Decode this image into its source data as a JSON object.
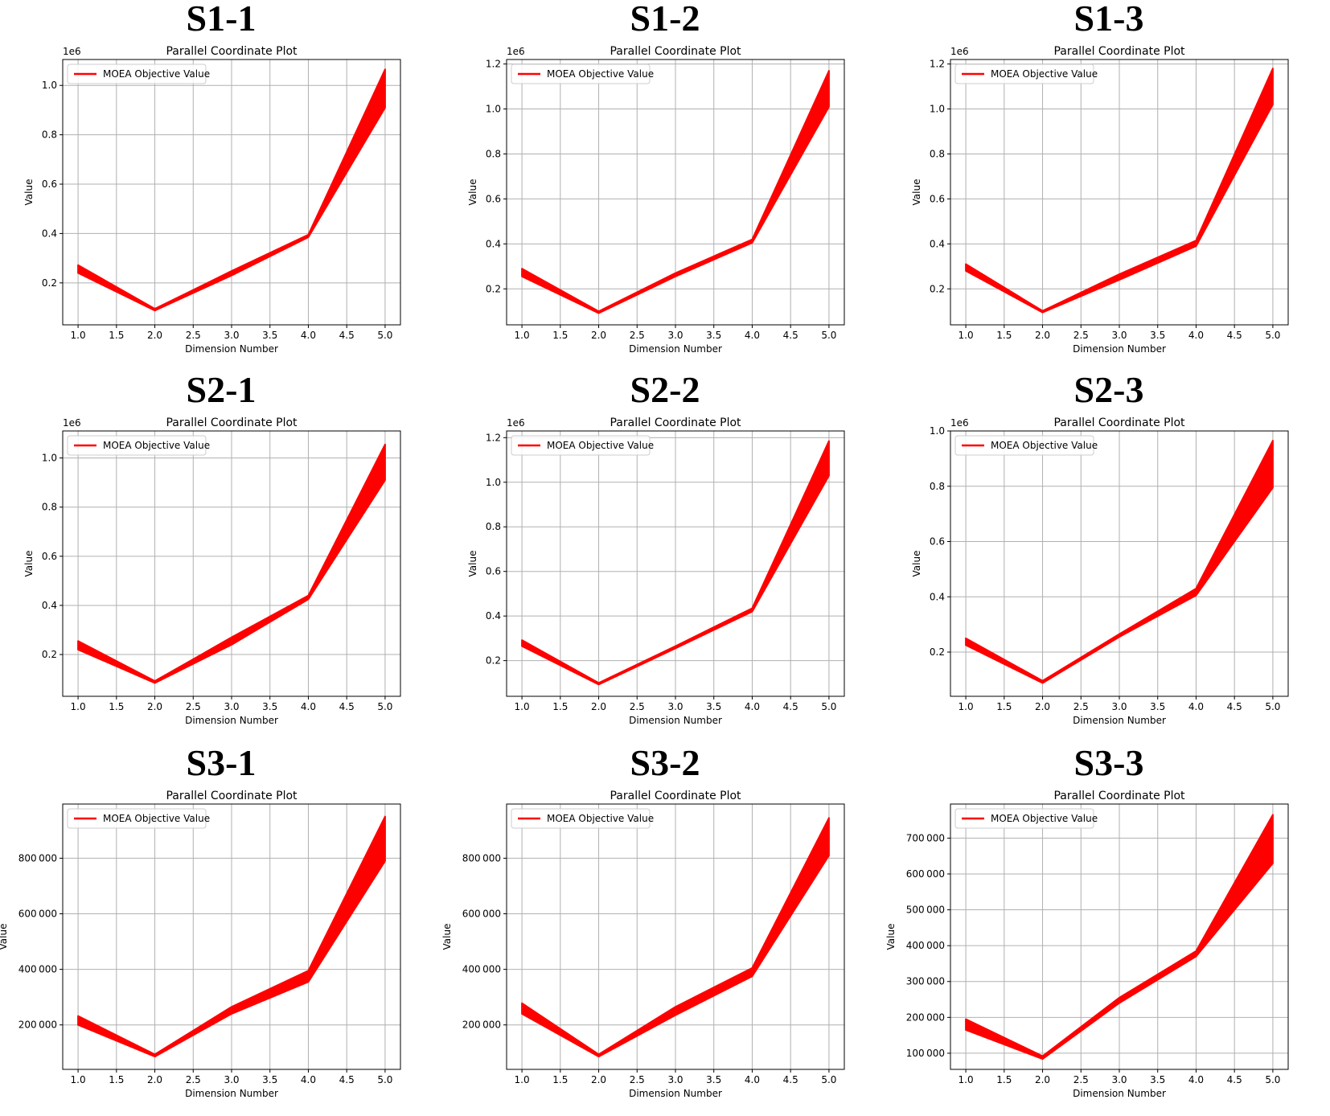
{
  "chart_data": [
    {
      "id": "S1-1",
      "panel_label": "S1-1",
      "type": "area",
      "title": "Parallel Coordinate Plot",
      "xlabel": "Dimension Number",
      "ylabel": "Value",
      "y_offset_text": "1e6",
      "y_format": "sci",
      "legend": "MOEA Objective Value",
      "legend_placement": "upper-left",
      "grid": true,
      "x": [
        1,
        2,
        3,
        4,
        5
      ],
      "lower": [
        240000,
        88000,
        230000,
        385000,
        910000
      ],
      "upper": [
        272000,
        95000,
        248000,
        395000,
        1065000
      ],
      "xlim": [
        0.8,
        5.2
      ],
      "ylim": [
        30000,
        1105000
      ],
      "xticks": [
        1.0,
        1.5,
        2.0,
        2.5,
        3.0,
        3.5,
        4.0,
        4.5,
        5.0
      ],
      "yticks": [
        200000,
        400000,
        600000,
        800000,
        1000000
      ]
    },
    {
      "id": "S1-2",
      "panel_label": "S1-2",
      "type": "area",
      "title": "Parallel Coordinate Plot",
      "xlabel": "Dimension Number",
      "ylabel": "Value",
      "y_offset_text": "1e6",
      "y_format": "sci",
      "legend": "MOEA Objective Value",
      "legend_placement": "upper-left",
      "grid": true,
      "x": [
        1,
        2,
        3,
        4,
        5
      ],
      "lower": [
        255000,
        92000,
        255000,
        405000,
        1010000
      ],
      "upper": [
        290000,
        100000,
        270000,
        420000,
        1170000
      ],
      "xlim": [
        0.8,
        5.2
      ],
      "ylim": [
        40000,
        1220000
      ],
      "xticks": [
        1.0,
        1.5,
        2.0,
        2.5,
        3.0,
        3.5,
        4.0,
        4.5,
        5.0
      ],
      "yticks": [
        200000,
        400000,
        600000,
        800000,
        1000000,
        1200000
      ]
    },
    {
      "id": "S1-3",
      "panel_label": "S1-3",
      "type": "area",
      "title": "Parallel Coordinate Plot",
      "xlabel": "Dimension Number",
      "ylabel": "Value",
      "y_offset_text": "1e6",
      "y_format": "sci",
      "legend": "MOEA Objective Value",
      "legend_placement": "upper-left",
      "grid": true,
      "x": [
        1,
        2,
        3,
        4,
        5
      ],
      "lower": [
        280000,
        95000,
        240000,
        390000,
        1020000
      ],
      "upper": [
        310000,
        102000,
        265000,
        415000,
        1180000
      ],
      "xlim": [
        0.8,
        5.2
      ],
      "ylim": [
        40000,
        1220000
      ],
      "xticks": [
        1.0,
        1.5,
        2.0,
        2.5,
        3.0,
        3.5,
        4.0,
        4.5,
        5.0
      ],
      "yticks": [
        200000,
        400000,
        600000,
        800000,
        1000000,
        1200000
      ]
    },
    {
      "id": "S2-1",
      "panel_label": "S2-1",
      "type": "area",
      "title": "Parallel Coordinate Plot",
      "xlabel": "Dimension Number",
      "ylabel": "Value",
      "y_offset_text": "1e6",
      "y_format": "sci",
      "legend": "MOEA Objective Value",
      "legend_placement": "upper-left",
      "grid": true,
      "x": [
        1,
        2,
        3,
        4,
        5
      ],
      "lower": [
        220000,
        84000,
        240000,
        425000,
        910000
      ],
      "upper": [
        255000,
        92000,
        270000,
        440000,
        1055000
      ],
      "xlim": [
        0.8,
        5.2
      ],
      "ylim": [
        30000,
        1110000
      ],
      "xticks": [
        1.0,
        1.5,
        2.0,
        2.5,
        3.0,
        3.5,
        4.0,
        4.5,
        5.0
      ],
      "yticks": [
        200000,
        400000,
        600000,
        800000,
        1000000
      ]
    },
    {
      "id": "S2-2",
      "panel_label": "S2-2",
      "type": "area",
      "title": "Parallel Coordinate Plot",
      "xlabel": "Dimension Number",
      "ylabel": "Value",
      "y_offset_text": "1e6",
      "y_format": "sci",
      "legend": "MOEA Objective Value",
      "legend_placement": "upper-left",
      "grid": true,
      "x": [
        1,
        2,
        3,
        4,
        5
      ],
      "lower": [
        265000,
        93000,
        255000,
        420000,
        1030000
      ],
      "upper": [
        292000,
        100000,
        265000,
        435000,
        1185000
      ],
      "xlim": [
        0.8,
        5.2
      ],
      "ylim": [
        40000,
        1230000
      ],
      "xticks": [
        1.0,
        1.5,
        2.0,
        2.5,
        3.0,
        3.5,
        4.0,
        4.5,
        5.0
      ],
      "yticks": [
        200000,
        400000,
        600000,
        800000,
        1000000,
        1200000
      ]
    },
    {
      "id": "S2-3",
      "panel_label": "S2-3",
      "type": "area",
      "title": "Parallel Coordinate Plot",
      "xlabel": "Dimension Number",
      "ylabel": "Value",
      "y_offset_text": "1e6",
      "y_format": "sci",
      "legend": "MOEA Objective Value",
      "legend_placement": "upper-left",
      "grid": true,
      "x": [
        1,
        2,
        3,
        4,
        5
      ],
      "lower": [
        225000,
        88000,
        255000,
        405000,
        795000
      ],
      "upper": [
        250000,
        96000,
        265000,
        430000,
        965000
      ],
      "xlim": [
        0.8,
        5.2
      ],
      "ylim": [
        40000,
        1000000
      ],
      "xticks": [
        1.0,
        1.5,
        2.0,
        2.5,
        3.0,
        3.5,
        4.0,
        4.5,
        5.0
      ],
      "yticks": [
        200000,
        400000,
        600000,
        800000,
        1000000
      ]
    },
    {
      "id": "S3-1",
      "panel_label": "S3-1",
      "type": "area",
      "title": "Parallel Coordinate Plot",
      "xlabel": "Dimension Number",
      "ylabel": "Value",
      "y_offset_text": "",
      "y_format": "plain",
      "legend": "MOEA Objective Value",
      "legend_placement": "upper-left",
      "grid": true,
      "x": [
        1,
        2,
        3,
        4,
        5
      ],
      "lower": [
        200000,
        86000,
        240000,
        355000,
        790000
      ],
      "upper": [
        232000,
        94000,
        265000,
        395000,
        950000
      ],
      "xlim": [
        0.8,
        5.2
      ],
      "ylim": [
        40000,
        995000
      ],
      "xticks": [
        1.0,
        1.5,
        2.0,
        2.5,
        3.0,
        3.5,
        4.0,
        4.5,
        5.0
      ],
      "yticks": [
        200000,
        400000,
        600000,
        800000
      ]
    },
    {
      "id": "S3-2",
      "panel_label": "S3-2",
      "type": "area",
      "title": "Parallel Coordinate Plot",
      "xlabel": "Dimension Number",
      "ylabel": "Value",
      "y_offset_text": "",
      "y_format": "plain",
      "legend": "MOEA Objective Value",
      "legend_placement": "upper-left",
      "grid": true,
      "x": [
        1,
        2,
        3,
        4,
        5
      ],
      "lower": [
        240000,
        86000,
        235000,
        375000,
        810000
      ],
      "upper": [
        278000,
        94000,
        265000,
        405000,
        945000
      ],
      "xlim": [
        0.8,
        5.2
      ],
      "ylim": [
        40000,
        995000
      ],
      "xticks": [
        1.0,
        1.5,
        2.0,
        2.5,
        3.0,
        3.5,
        4.0,
        4.5,
        5.0
      ],
      "yticks": [
        200000,
        400000,
        600000,
        800000
      ]
    },
    {
      "id": "S3-3",
      "panel_label": "S3-3",
      "type": "area",
      "title": "Parallel Coordinate Plot",
      "xlabel": "Dimension Number",
      "ylabel": "Value",
      "y_offset_text": "",
      "y_format": "plain",
      "legend": "MOEA Objective Value",
      "legend_placement": "upper-left",
      "grid": true,
      "x": [
        1,
        2,
        3,
        4,
        5
      ],
      "lower": [
        165000,
        84000,
        240000,
        370000,
        630000
      ],
      "upper": [
        195000,
        92000,
        255000,
        385000,
        765000
      ],
      "xlim": [
        0.8,
        5.2
      ],
      "ylim": [
        55000,
        795000
      ],
      "xticks": [
        1.0,
        1.5,
        2.0,
        2.5,
        3.0,
        3.5,
        4.0,
        4.5,
        5.0
      ],
      "yticks": [
        100000,
        200000,
        300000,
        400000,
        500000,
        600000,
        700000
      ]
    }
  ],
  "colors": {
    "series": "#ff0000",
    "grid": "#b0b0b0",
    "axes": "#000000"
  }
}
